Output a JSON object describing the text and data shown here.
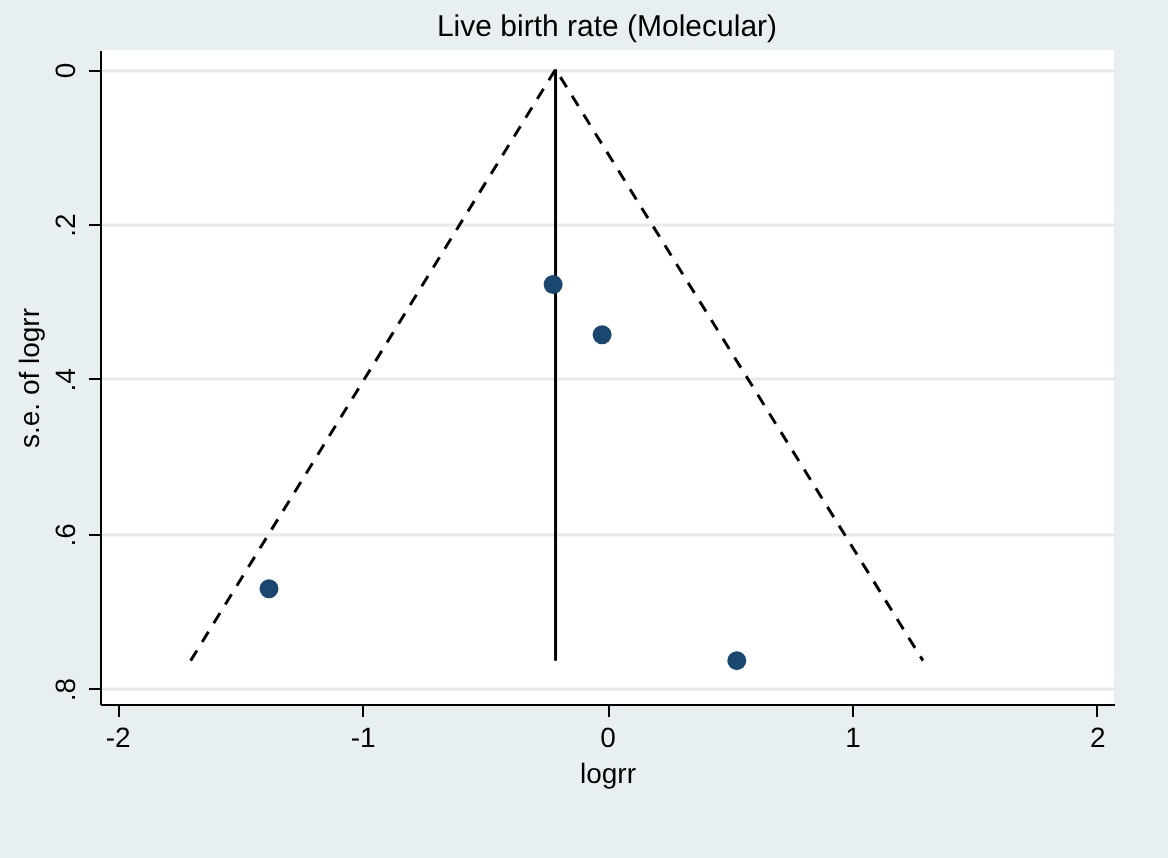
{
  "chart_data": {
    "type": "scatter",
    "title": "Live birth rate (Molecular)",
    "xlabel": "logrr",
    "ylabel": "s.e. of logrr",
    "xlim": [
      -2.07,
      2.07
    ],
    "xticks": [
      -2,
      -1,
      0,
      1,
      2
    ],
    "ylim": [
      0.82,
      -0.025
    ],
    "yticks": [
      0,
      {
        "value": 0.2,
        "label": ".2"
      },
      {
        "value": 0.4,
        "label": ".4"
      },
      {
        "value": 0.6,
        "label": ".6"
      },
      {
        "value": 0.8,
        "label": ".8"
      }
    ],
    "grid": "y",
    "series": [
      {
        "type": "line",
        "line_style": "dashed",
        "color": "#000000",
        "x": [
          -1.7,
          -0.21,
          1.29
        ],
        "values": [
          0.764,
          0,
          0.764
        ]
      },
      {
        "type": "line",
        "line_style": "solid",
        "color": "#000000",
        "x": [
          -0.21,
          -0.21
        ],
        "values": [
          0,
          0.764
        ]
      },
      {
        "type": "scatter",
        "marker": "circle",
        "color": "#1a476f",
        "x": [
          -0.22,
          -0.02,
          -1.38,
          0.53
        ],
        "values": [
          0.278,
          0.343,
          0.671,
          0.764
        ]
      }
    ]
  }
}
